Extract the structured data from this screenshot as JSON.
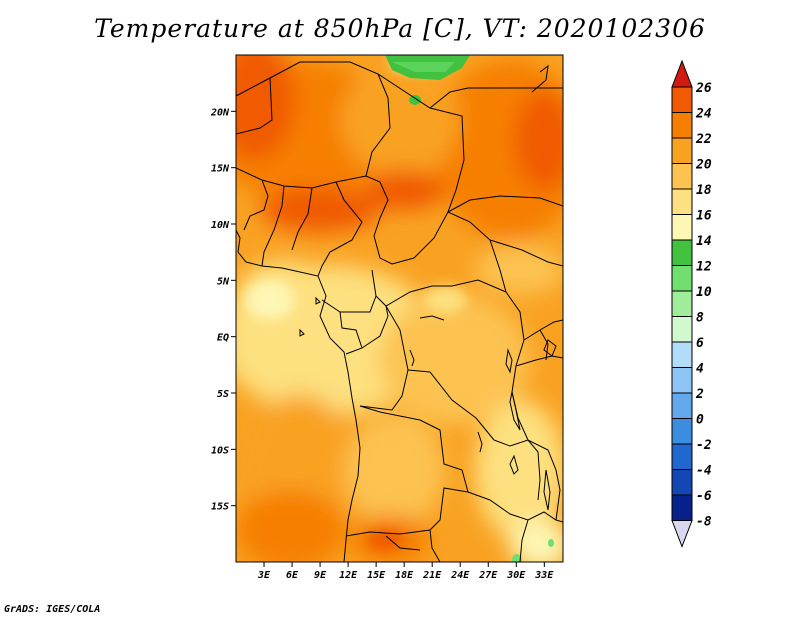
{
  "title": "Temperature at 850hPa [C], VT: 2020102306",
  "credit": "GrADS: IGES/COLA",
  "map": {
    "lon_range": [
      0,
      35
    ],
    "lat_range": [
      -20,
      25
    ],
    "lat_ticks": [
      {
        "value": 20,
        "label": "20N"
      },
      {
        "value": 15,
        "label": "15N"
      },
      {
        "value": 10,
        "label": "10N"
      },
      {
        "value": 5,
        "label": "5N"
      },
      {
        "value": 0,
        "label": "EQ"
      },
      {
        "value": -5,
        "label": "5S"
      },
      {
        "value": -10,
        "label": "10S"
      },
      {
        "value": -15,
        "label": "15S"
      }
    ],
    "lon_ticks": [
      {
        "value": 3,
        "label": "3E"
      },
      {
        "value": 6,
        "label": "6E"
      },
      {
        "value": 9,
        "label": "9E"
      },
      {
        "value": 12,
        "label": "12E"
      },
      {
        "value": 15,
        "label": "15E"
      },
      {
        "value": 18,
        "label": "18E"
      },
      {
        "value": 21,
        "label": "21E"
      },
      {
        "value": 24,
        "label": "24E"
      },
      {
        "value": 27,
        "label": "27E"
      },
      {
        "value": 30,
        "label": "30E"
      },
      {
        "value": 33,
        "label": "33E"
      }
    ]
  },
  "colorbar": {
    "levels": [
      26,
      24,
      22,
      20,
      18,
      16,
      14,
      12,
      10,
      8,
      6,
      4,
      2,
      0,
      -2,
      -4,
      -6,
      -8
    ],
    "labels": [
      "26",
      "24",
      "22",
      "20",
      "18",
      "16",
      "14",
      "12",
      "10",
      "8",
      "6",
      "4",
      "2",
      "0",
      "-2",
      "-4",
      "-6",
      "-8"
    ],
    "colors": [
      "#e83008",
      "#f05a00",
      "#f67f00",
      "#f9a222",
      "#fcc351",
      "#fde07f",
      "#fdf6b4",
      "#40c240",
      "#72de72",
      "#a0ec9a",
      "#d2f8d0",
      "#b2dcfa",
      "#8ec4f4",
      "#64a8ec",
      "#3c8ce0",
      "#2068d0",
      "#1446b4",
      "#08208c"
    ],
    "top_arrow_color": "#d21a10",
    "bottom_arrow_color": "#d8d8f0"
  }
}
